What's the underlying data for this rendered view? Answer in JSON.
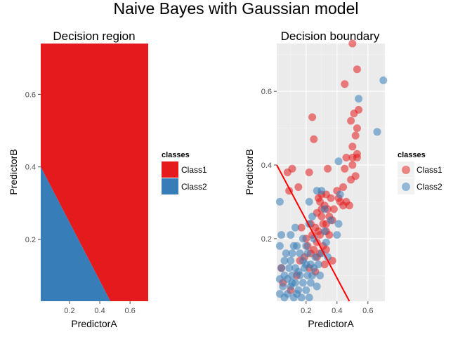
{
  "figure": {
    "title": "Naive Bayes with Gaussian model"
  },
  "colors": {
    "class1": "#E41A1C",
    "class2": "#377EB8",
    "panel_bg": "#EBEBEB",
    "grid": "#FFFFFF",
    "boundary": "#FF0000"
  },
  "chart_data": [
    {
      "type": "area",
      "title": "Decision region",
      "xlabel": "PredictorA",
      "ylabel": "PredictorB",
      "xlim": [
        0.01,
        0.72
      ],
      "ylim": [
        0.03,
        0.74
      ],
      "xticks": [
        0.2,
        0.4,
        0.6
      ],
      "yticks": [
        0.2,
        0.4,
        0.6
      ],
      "xtick_labels": [
        "0.2",
        "0.4",
        "0.6"
      ],
      "ytick_labels": [
        "0.2",
        "0.4",
        "0.6"
      ],
      "grid": false,
      "legend": {
        "title": "classes",
        "position": "right",
        "entries": [
          {
            "label": "Class1",
            "color": "#E41A1C"
          },
          {
            "label": "Class2",
            "color": "#377EB8"
          }
        ]
      },
      "regions": [
        {
          "class": "Class1",
          "polygon": [
            [
              0.01,
              0.74
            ],
            [
              0.72,
              0.74
            ],
            [
              0.72,
              0.03
            ],
            [
              0.47,
              0.03
            ],
            [
              0.01,
              0.4
            ]
          ]
        },
        {
          "class": "Class2",
          "polygon": [
            [
              0.01,
              0.4
            ],
            [
              0.47,
              0.03
            ],
            [
              0.01,
              0.03
            ]
          ]
        }
      ]
    },
    {
      "type": "scatter",
      "title": "Decision boundary",
      "xlabel": "PredictorA",
      "ylabel": "PredictorB",
      "xlim": [
        0.01,
        0.71
      ],
      "ylim": [
        0.03,
        0.73
      ],
      "xticks": [
        0.2,
        0.4,
        0.6
      ],
      "yticks": [
        0.2,
        0.4,
        0.6
      ],
      "xtick_labels": [
        "0.2",
        "0.4",
        "0.6"
      ],
      "ytick_labels": [
        "0.2",
        "0.4",
        "0.6"
      ],
      "grid": true,
      "legend": {
        "title": "classes",
        "position": "right",
        "entries": [
          {
            "label": "Class1",
            "color": "#E41A1C"
          },
          {
            "label": "Class2",
            "color": "#377EB8"
          }
        ]
      },
      "boundary_line": [
        [
          0.01,
          0.4
        ],
        [
          0.48,
          0.03
        ]
      ],
      "series": [
        {
          "name": "Class1",
          "points": [
            [
              0.5,
              0.73
            ],
            [
              0.53,
              0.66
            ],
            [
              0.45,
              0.62
            ],
            [
              0.51,
              0.54
            ],
            [
              0.54,
              0.55
            ],
            [
              0.24,
              0.53
            ],
            [
              0.49,
              0.52
            ],
            [
              0.53,
              0.5
            ],
            [
              0.25,
              0.47
            ],
            [
              0.52,
              0.48
            ],
            [
              0.5,
              0.45
            ],
            [
              0.53,
              0.43
            ],
            [
              0.46,
              0.42
            ],
            [
              0.5,
              0.42
            ],
            [
              0.53,
              0.42
            ],
            [
              0.22,
              0.38
            ],
            [
              0.08,
              0.38
            ],
            [
              0.11,
              0.39
            ],
            [
              0.34,
              0.39
            ],
            [
              0.45,
              0.39
            ],
            [
              0.5,
              0.4
            ],
            [
              0.52,
              0.37
            ],
            [
              0.49,
              0.36
            ],
            [
              0.44,
              0.34
            ],
            [
              0.4,
              0.33
            ],
            [
              0.09,
              0.33
            ],
            [
              0.15,
              0.34
            ],
            [
              0.3,
              0.32
            ],
            [
              0.33,
              0.32
            ],
            [
              0.36,
              0.31
            ],
            [
              0.41,
              0.31
            ],
            [
              0.42,
              0.3
            ],
            [
              0.46,
              0.3
            ],
            [
              0.48,
              0.29
            ],
            [
              0.29,
              0.3
            ],
            [
              0.32,
              0.29
            ],
            [
              0.34,
              0.28
            ],
            [
              0.38,
              0.28
            ],
            [
              0.44,
              0.29
            ],
            [
              0.27,
              0.27
            ],
            [
              0.3,
              0.26
            ],
            [
              0.35,
              0.26
            ],
            [
              0.31,
              0.24
            ],
            [
              0.23,
              0.24
            ],
            [
              0.33,
              0.24
            ],
            [
              0.26,
              0.23
            ],
            [
              0.28,
              0.22
            ],
            [
              0.29,
              0.21
            ],
            [
              0.35,
              0.21
            ],
            [
              0.24,
              0.21
            ],
            [
              0.17,
              0.23
            ],
            [
              0.2,
              0.2
            ],
            [
              0.27,
              0.19
            ],
            [
              0.31,
              0.18
            ],
            [
              0.21,
              0.18
            ],
            [
              0.25,
              0.17
            ],
            [
              0.33,
              0.17
            ],
            [
              0.23,
              0.16
            ],
            [
              0.29,
              0.16
            ],
            [
              0.27,
              0.15
            ],
            [
              0.19,
              0.15
            ],
            [
              0.16,
              0.14
            ],
            [
              0.37,
              0.14
            ],
            [
              0.32,
              0.13
            ],
            [
              0.22,
              0.12
            ],
            [
              0.26,
              0.11
            ],
            [
              0.14,
              0.1
            ],
            [
              0.04,
              0.12
            ],
            [
              0.05,
              0.08
            ],
            [
              0.1,
              0.06
            ],
            [
              0.33,
              0.22
            ],
            [
              0.37,
              0.25
            ],
            [
              0.3,
              0.28
            ],
            [
              0.28,
              0.31
            ]
          ]
        },
        {
          "name": "Class2",
          "points": [
            [
              0.7,
              0.63
            ],
            [
              0.54,
              0.58
            ],
            [
              0.66,
              0.49
            ],
            [
              0.41,
              0.41
            ],
            [
              0.42,
              0.32
            ],
            [
              0.3,
              0.33
            ],
            [
              0.27,
              0.33
            ],
            [
              0.22,
              0.3
            ],
            [
              0.03,
              0.3
            ],
            [
              0.32,
              0.28
            ],
            [
              0.24,
              0.26
            ],
            [
              0.36,
              0.25
            ],
            [
              0.41,
              0.24
            ],
            [
              0.22,
              0.24
            ],
            [
              0.32,
              0.22
            ],
            [
              0.4,
              0.21
            ],
            [
              0.13,
              0.23
            ],
            [
              0.1,
              0.21
            ],
            [
              0.18,
              0.2
            ],
            [
              0.04,
              0.21
            ],
            [
              0.25,
              0.2
            ],
            [
              0.33,
              0.19
            ],
            [
              0.14,
              0.18
            ],
            [
              0.2,
              0.18
            ],
            [
              0.12,
              0.18
            ],
            [
              0.03,
              0.18
            ],
            [
              0.07,
              0.16
            ],
            [
              0.11,
              0.16
            ],
            [
              0.16,
              0.16
            ],
            [
              0.21,
              0.16
            ],
            [
              0.26,
              0.15
            ],
            [
              0.3,
              0.16
            ],
            [
              0.34,
              0.15
            ],
            [
              0.06,
              0.14
            ],
            [
              0.1,
              0.14
            ],
            [
              0.18,
              0.14
            ],
            [
              0.23,
              0.13
            ],
            [
              0.28,
              0.13
            ],
            [
              0.04,
              0.12
            ],
            [
              0.09,
              0.12
            ],
            [
              0.13,
              0.12
            ],
            [
              0.19,
              0.12
            ],
            [
              0.25,
              0.12
            ],
            [
              0.06,
              0.1
            ],
            [
              0.11,
              0.1
            ],
            [
              0.16,
              0.1
            ],
            [
              0.21,
              0.1
            ],
            [
              0.29,
              0.1
            ],
            [
              0.03,
              0.09
            ],
            [
              0.08,
              0.09
            ],
            [
              0.13,
              0.08
            ],
            [
              0.18,
              0.08
            ],
            [
              0.23,
              0.08
            ],
            [
              0.05,
              0.07
            ],
            [
              0.1,
              0.07
            ],
            [
              0.15,
              0.06
            ],
            [
              0.2,
              0.06
            ],
            [
              0.27,
              0.07
            ],
            [
              0.03,
              0.05
            ],
            [
              0.08,
              0.05
            ],
            [
              0.12,
              0.04
            ],
            [
              0.17,
              0.04
            ],
            [
              0.22,
              0.04
            ],
            [
              0.06,
              0.04
            ],
            [
              0.14,
              0.05
            ],
            [
              0.24,
              0.1
            ],
            [
              0.2,
              0.13
            ],
            [
              0.15,
              0.11
            ],
            [
              0.11,
              0.08
            ]
          ]
        }
      ]
    }
  ]
}
